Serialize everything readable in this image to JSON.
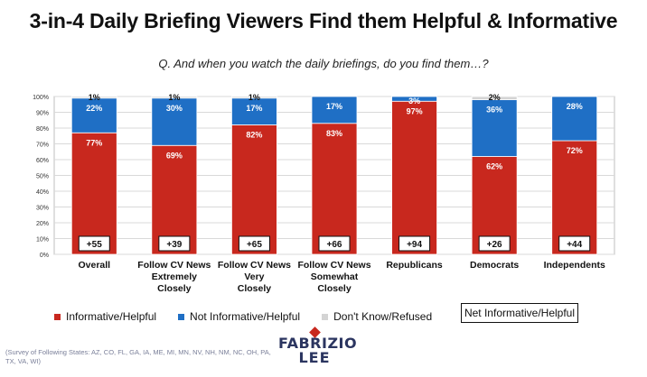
{
  "title": "3-in-4 Daily Briefing Viewers Find them Helpful & Informative",
  "subtitle": "Q. And when you watch the daily briefings, do you find them…?",
  "colors": {
    "informative": "#c8281e",
    "not_informative": "#1f6fc5",
    "dont_know": "#d4d4d4"
  },
  "chart_data": {
    "type": "bar",
    "stacked": true,
    "categories": [
      [
        "Overall"
      ],
      [
        "Follow CV News",
        "Extremely",
        "Closely"
      ],
      [
        "Follow CV News",
        "Very",
        "Closely"
      ],
      [
        "Follow CV News",
        "Somewhat",
        "Closely"
      ],
      [
        "Republicans"
      ],
      [
        "Democrats"
      ],
      [
        "Independents"
      ]
    ],
    "series": [
      {
        "name": "Informative/Helpful",
        "values": [
          77,
          69,
          82,
          83,
          97,
          62,
          72
        ],
        "labels": [
          "77%",
          "69%",
          "82%",
          "83%",
          "97%",
          "62%",
          "72%"
        ]
      },
      {
        "name": "Not Informative/Helpful",
        "values": [
          22,
          30,
          17,
          17,
          3,
          36,
          28
        ],
        "labels": [
          "22%",
          "30%",
          "17%",
          "17%",
          "3%",
          "36%",
          "28%"
        ]
      },
      {
        "name": "Don't Know/Refused",
        "values": [
          1,
          1,
          1,
          0,
          0,
          2,
          0
        ],
        "labels": [
          "1%",
          "1%",
          "1%",
          "",
          "",
          "2%",
          ""
        ]
      }
    ],
    "net": {
      "name": "Net Informative/Helpful",
      "values": [
        "+55",
        "+39",
        "+65",
        "+66",
        "+94",
        "+26",
        "+44"
      ]
    },
    "ylim": [
      0,
      100
    ],
    "yticks": [
      "0%",
      "10%",
      "20%",
      "30%",
      "40%",
      "50%",
      "60%",
      "70%",
      "80%",
      "90%",
      "100%"
    ],
    "grid": true,
    "legend_position": "bottom"
  },
  "footnote": "(Survey of Following States: AZ, CO, FL, GA, IA, ME, MI, MN, NV, NH, NM, NC, OH, PA, TX, VA, WI)",
  "logo": {
    "line1": "FABRIZIO",
    "line2": "LEE"
  }
}
